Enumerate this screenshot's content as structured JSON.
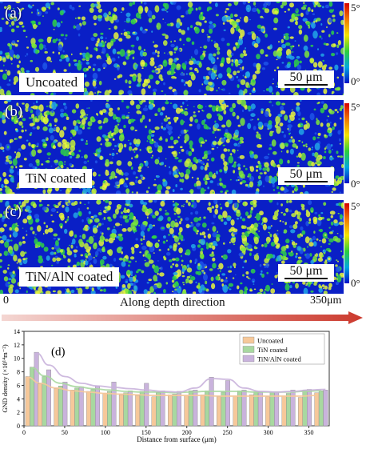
{
  "panels": [
    {
      "letter": "(a)",
      "label": "Uncoated",
      "scale": "50 μm"
    },
    {
      "letter": "(b)",
      "label": "TiN coated",
      "scale": "50 μm"
    },
    {
      "letter": "(c)",
      "label": "TiN/AlN coated",
      "scale": "50 μm"
    }
  ],
  "colorbar": {
    "max_label": "5°",
    "min_label": "0°",
    "colors": [
      "#d40000",
      "#f07800",
      "#f6e400",
      "#2dd03b",
      "#00a8e0",
      "#0010c8"
    ]
  },
  "depth_axis": {
    "start": "0",
    "end": "350μm",
    "label": "Along depth direction",
    "arrow_color": "#cc3a2e"
  },
  "chart_data": {
    "type": "bar",
    "panel_letter": "(d)",
    "xlabel": "Distance from surface (μm)",
    "ylabel": "GND density (×10¹⁴m⁻²)",
    "xlim": [
      0,
      375
    ],
    "ylim": [
      0,
      14
    ],
    "xticks": [
      0,
      50,
      100,
      150,
      200,
      250,
      300,
      350
    ],
    "yticks": [
      0,
      2,
      4,
      6,
      8,
      10,
      12,
      14
    ],
    "categories": [
      10,
      25,
      45,
      65,
      85,
      105,
      125,
      145,
      165,
      185,
      205,
      225,
      245,
      265,
      285,
      305,
      325,
      345,
      365
    ],
    "series": [
      {
        "name": "Uncoated",
        "color": "#f6c89a",
        "values": [
          7.3,
          6.2,
          5.5,
          5.3,
          5.1,
          4.8,
          4.6,
          4.5,
          4.3,
          4.6,
          4.5,
          4.6,
          4.3,
          4.4,
          4.6,
          4.3,
          4.4,
          4.2,
          4.9
        ],
        "trend": [
          7.2,
          6.3,
          5.6,
          5.2,
          5.0,
          4.8,
          4.7,
          4.6,
          4.5,
          4.5,
          4.5,
          4.5,
          4.4,
          4.4,
          4.4,
          4.4,
          4.4,
          4.4,
          4.5
        ]
      },
      {
        "name": "TiN coated",
        "color": "#a8d8a0",
        "values": [
          8.7,
          7.3,
          5.9,
          5.6,
          5.4,
          5.1,
          4.9,
          5.1,
          4.9,
          4.7,
          5.2,
          5.2,
          5.0,
          5.2,
          5.0,
          5.0,
          4.8,
          5.3,
          5.2
        ],
        "trend": [
          8.6,
          7.4,
          6.3,
          5.8,
          5.5,
          5.3,
          5.1,
          5.0,
          5.0,
          4.9,
          5.0,
          5.1,
          5.1,
          5.1,
          5.0,
          5.0,
          5.0,
          5.1,
          5.2
        ]
      },
      {
        "name": "TiN/AlN coated",
        "color": "#c9b3dc",
        "values": [
          10.9,
          8.3,
          6.5,
          5.8,
          5.9,
          6.5,
          5.2,
          6.3,
          5.2,
          5.1,
          5.3,
          7.2,
          6.7,
          5.3,
          5.0,
          5.0,
          5.3,
          5.4,
          5.3
        ],
        "trend": [
          10.8,
          9.0,
          7.3,
          6.3,
          5.9,
          5.7,
          5.5,
          5.3,
          5.1,
          5.0,
          5.6,
          7.0,
          6.9,
          5.6,
          5.1,
          5.0,
          5.1,
          5.3,
          5.4
        ]
      }
    ],
    "legend_position": "top-right"
  }
}
